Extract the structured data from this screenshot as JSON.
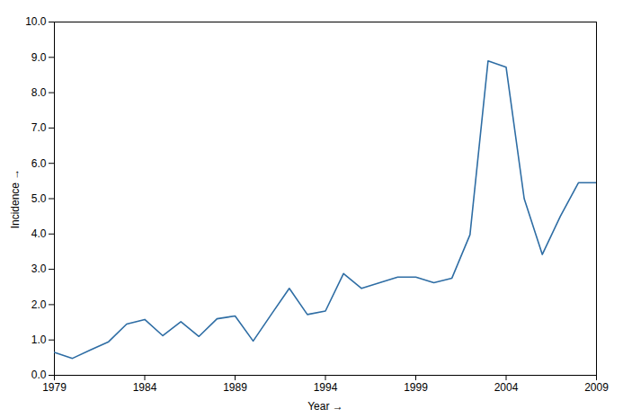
{
  "chart_data": {
    "type": "line",
    "x": [
      1979,
      1980,
      1981,
      1982,
      1983,
      1984,
      1985,
      1986,
      1987,
      1988,
      1989,
      1990,
      1991,
      1992,
      1993,
      1994,
      1995,
      1996,
      1997,
      1998,
      1999,
      2000,
      2001,
      2002,
      2003,
      2004,
      2005,
      2006,
      2007,
      2008,
      2009
    ],
    "values": [
      0.65,
      0.48,
      0.72,
      0.95,
      1.45,
      1.58,
      1.12,
      1.52,
      1.1,
      1.6,
      1.68,
      0.97,
      1.72,
      2.46,
      1.72,
      1.82,
      2.88,
      2.46,
      2.62,
      2.78,
      2.78,
      2.62,
      2.75,
      3.98,
      8.9,
      8.72,
      5.0,
      3.42,
      4.5,
      5.45,
      5.45
    ],
    "color": "#2e6da4",
    "xlabel": "Year",
    "ylabel": "Incidence",
    "xlim": [
      1979,
      2009
    ],
    "ylim": [
      0.0,
      10.0
    ],
    "xticks": [
      1979,
      1984,
      1989,
      1994,
      1999,
      2004,
      2009
    ],
    "yticks": [
      {
        "value": 0.0,
        "label": "0.0"
      },
      {
        "value": 1.0,
        "label": "1.0"
      },
      {
        "value": 2.0,
        "label": "2.0"
      },
      {
        "value": 3.0,
        "label": "3.0"
      },
      {
        "value": 4.0,
        "label": "4.0"
      },
      {
        "value": 5.0,
        "label": "5.0"
      },
      {
        "value": 6.0,
        "label": "6.0"
      },
      {
        "value": 7.0,
        "label": "7.0"
      },
      {
        "value": 8.0,
        "label": "8.0"
      },
      {
        "value": 9.0,
        "label": "9.0"
      },
      {
        "value": 10.0,
        "label": "10.0"
      }
    ]
  }
}
